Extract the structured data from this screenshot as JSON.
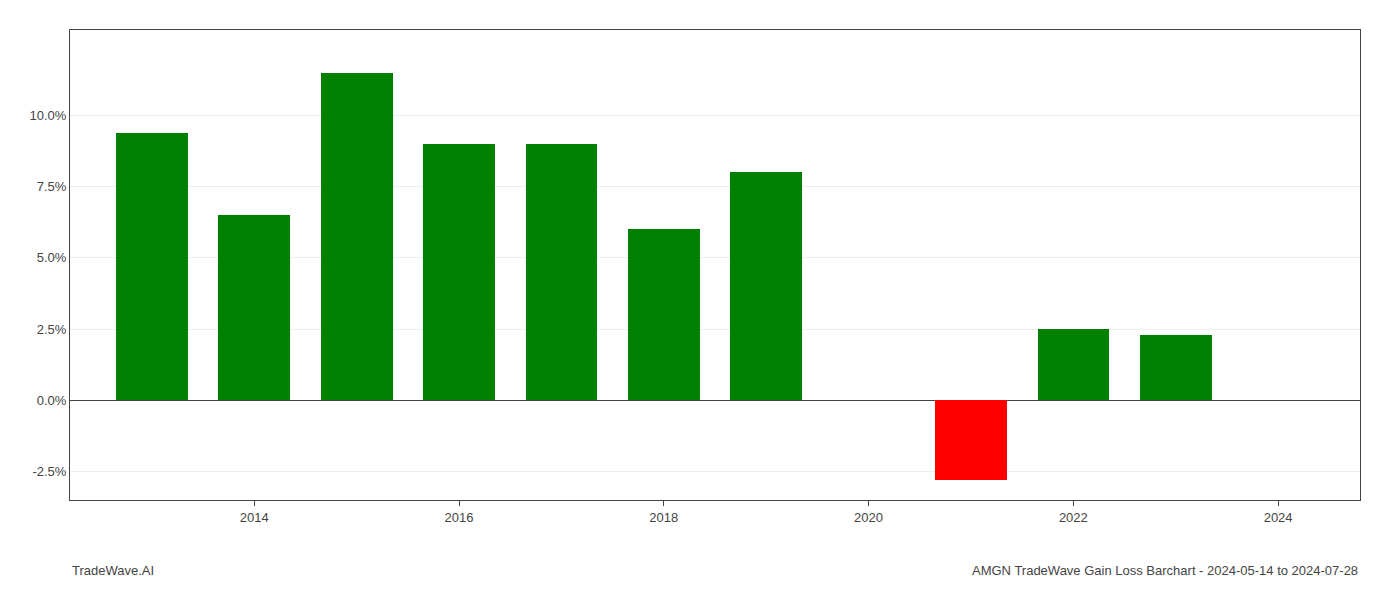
{
  "chart_data": {
    "type": "bar",
    "title": "AMGN TradeWave Gain Loss Barchart - 2024-05-14 to 2024-07-28",
    "annotations": [
      "TradeWave.AI"
    ],
    "x": [
      2013,
      2014,
      2015,
      2016,
      2017,
      2018,
      2019,
      2021,
      2022,
      2023
    ],
    "values": [
      9.4,
      6.5,
      11.5,
      9.0,
      9.0,
      6.0,
      8.0,
      -2.8,
      2.5,
      2.3
    ],
    "colors": [
      "#008000",
      "#008000",
      "#008000",
      "#008000",
      "#008000",
      "#008000",
      "#008000",
      "#ff0000",
      "#008000",
      "#008000"
    ],
    "xlim": [
      2012.2,
      2024.8
    ],
    "xticks": [
      2014,
      2016,
      2018,
      2020,
      2022,
      2024
    ],
    "ylim": [
      -3.5,
      13.0
    ],
    "yticks": [
      {
        "value": -2.5,
        "label": "-2.5%"
      },
      {
        "value": 0.0,
        "label": "0.0%"
      },
      {
        "value": 2.5,
        "label": "2.5%"
      },
      {
        "value": 5.0,
        "label": "5.0%"
      },
      {
        "value": 7.5,
        "label": "7.5%"
      },
      {
        "value": 10.0,
        "label": "10.0%"
      }
    ],
    "grid": true
  }
}
